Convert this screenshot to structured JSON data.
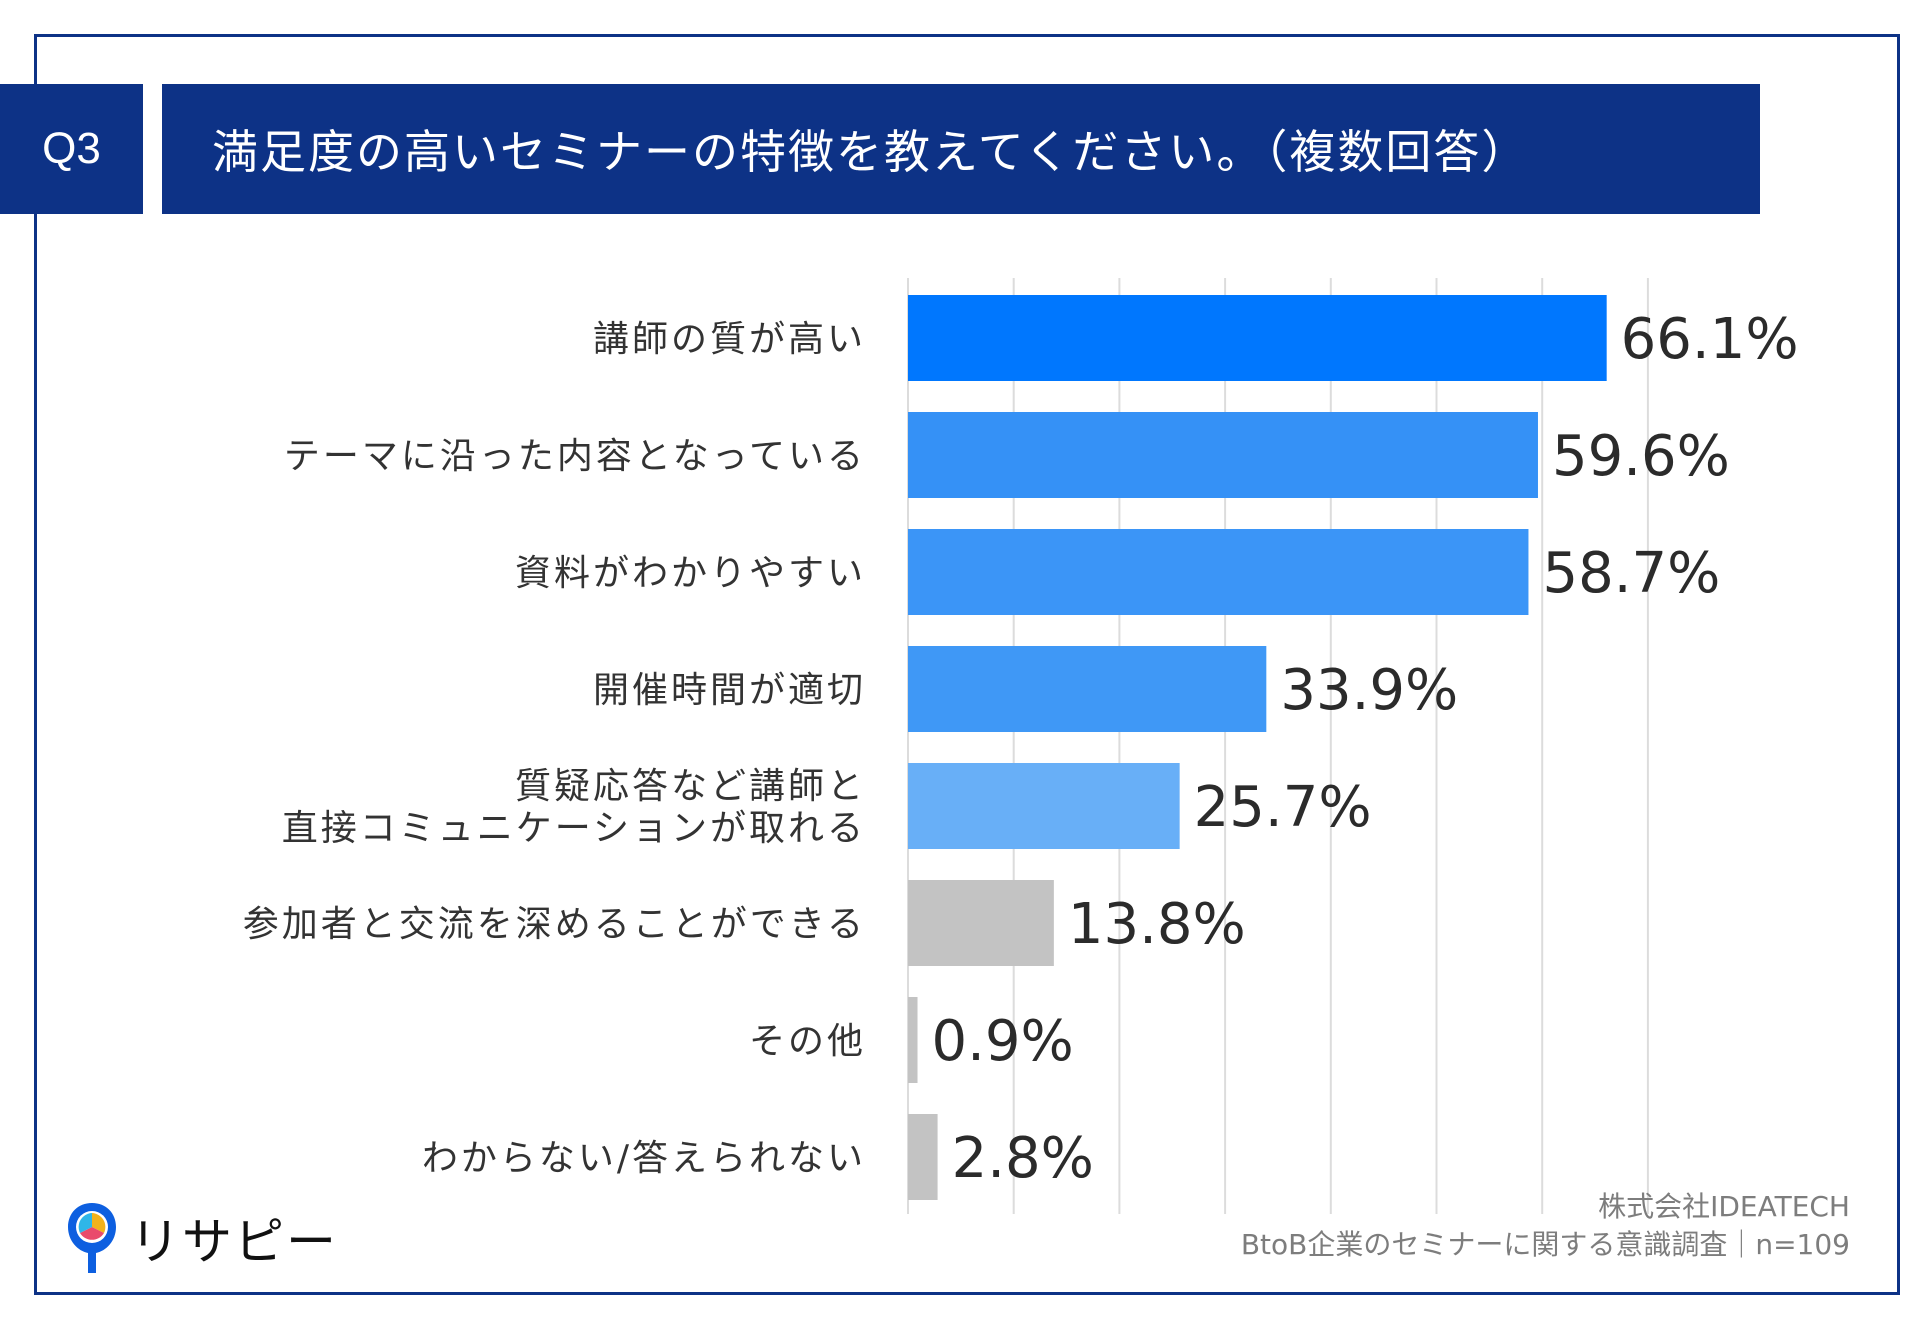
{
  "header": {
    "badge": "Q3",
    "title": "満足度の高いセミナーの特徴を教えてください。（複数回答）"
  },
  "chart_data": {
    "type": "bar",
    "orientation": "horizontal",
    "title": "満足度の高いセミナーの特徴を教えてください。（複数回答）",
    "xlim": [
      0,
      70
    ],
    "grid": true,
    "categories": [
      "講師の質が高い",
      "テーマに沿った内容となっている",
      "資料がわかりやすい",
      "開催時間が適切",
      "質疑応答など講師と\n直接コミュニケーションが取れる",
      "参加者と交流を深めることができる",
      "その他",
      "わからない/答えられない"
    ],
    "values": [
      66.1,
      59.6,
      58.7,
      33.9,
      25.7,
      13.8,
      0.9,
      2.8
    ],
    "value_labels": [
      "66.1%",
      "59.6%",
      "58.7%",
      "33.9%",
      "25.7%",
      "13.8%",
      "0.9%",
      "2.8%"
    ],
    "colors": [
      "#0077fe",
      "#3591f6",
      "#3b95f7",
      "#3f98f6",
      "#68aff7",
      "#c3c3c3",
      "#c3c3c3",
      "#c3c3c3"
    ]
  },
  "footer": {
    "source_line1": "株式会社IDEATECH",
    "source_line2": "BtoB企業のセミナーに関する意識調査｜n=109",
    "logo_text": "リサピー"
  }
}
